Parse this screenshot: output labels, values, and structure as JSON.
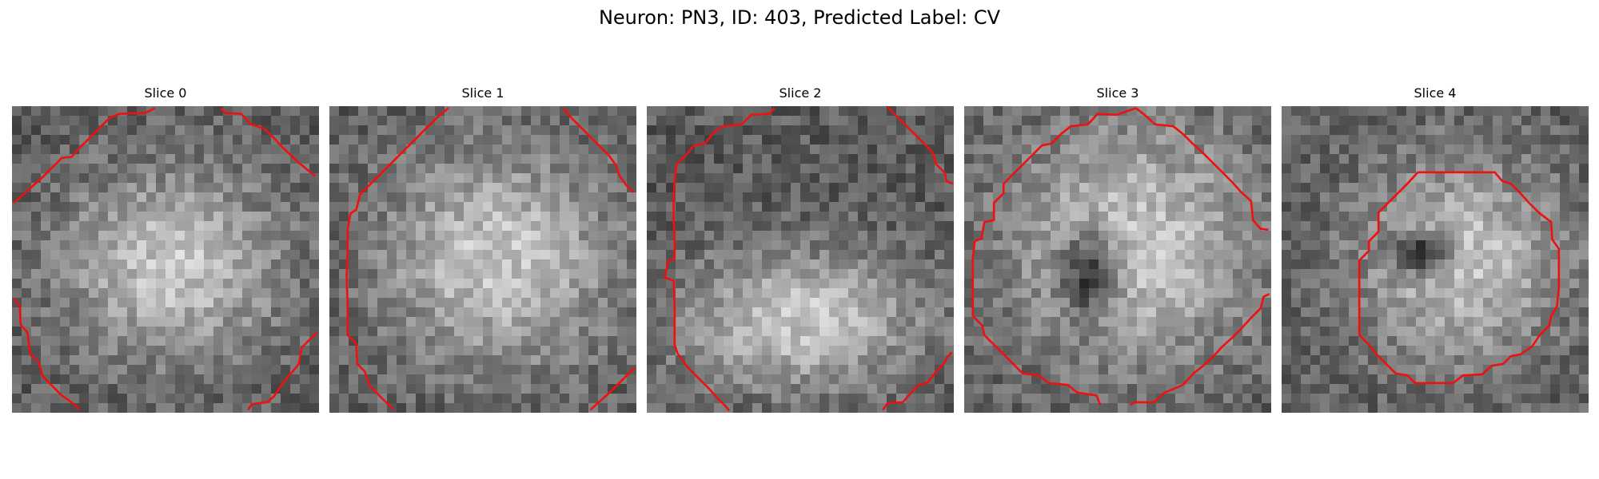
{
  "figure": {
    "title": "Neuron: PN3, ID: 403, Predicted Label: CV"
  },
  "image": {
    "grid": 32,
    "colormap": "gray",
    "contour_color": "#ee1111"
  },
  "panels": [
    {
      "title": "Slice 0",
      "bright_blob": [
        0.52,
        0.52,
        0.36,
        0.3
      ],
      "dark_core": null,
      "contours": [
        [
          [
            0.2,
            10.1
          ],
          [
            3.3,
            7.3
          ],
          [
            5.2,
            5.4
          ],
          [
            6.2,
            5.3
          ],
          [
            7.2,
            4.2
          ],
          [
            8.2,
            3.2
          ],
          [
            9.2,
            2.2
          ],
          [
            10.2,
            1.2
          ],
          [
            11.2,
            0.8
          ],
          [
            13.9,
            0.7
          ],
          [
            14.9,
            0.2
          ]
        ],
        [
          [
            21.8,
            0.2
          ],
          [
            22.2,
            0.7
          ],
          [
            23.9,
            0.8
          ],
          [
            24.9,
            1.9
          ],
          [
            26.2,
            2.3
          ],
          [
            27.2,
            3.2
          ],
          [
            28.2,
            4.3
          ],
          [
            29.9,
            5.9
          ],
          [
            31.6,
            7.3
          ]
        ],
        [
          [
            0.2,
            20.1
          ],
          [
            0.8,
            20.8
          ],
          [
            0.9,
            22.8
          ],
          [
            1.6,
            23.6
          ],
          [
            1.9,
            25.9
          ],
          [
            2.8,
            26.7
          ],
          [
            3.2,
            28.2
          ],
          [
            4.2,
            29.2
          ],
          [
            5.2,
            30.2
          ],
          [
            6.2,
            30.9
          ],
          [
            7.1,
            31.7
          ]
        ],
        [
          [
            24.6,
            31.7
          ],
          [
            25.0,
            31.1
          ],
          [
            26.6,
            30.9
          ],
          [
            27.3,
            30.3
          ],
          [
            28.1,
            29.1
          ],
          [
            29.0,
            28.0
          ],
          [
            29.9,
            26.9
          ],
          [
            30.2,
            25.2
          ],
          [
            31.2,
            24.2
          ],
          [
            31.8,
            23.6
          ]
        ]
      ]
    },
    {
      "title": "Slice 1",
      "bright_blob": [
        0.55,
        0.5,
        0.38,
        0.35
      ],
      "dark_core": null,
      "contours": [
        [
          [
            12.4,
            0.2
          ],
          [
            11.2,
            1.2
          ],
          [
            10.2,
            2.2
          ],
          [
            9.2,
            3.2
          ],
          [
            8.2,
            4.2
          ],
          [
            7.2,
            5.2
          ],
          [
            6.2,
            6.2
          ],
          [
            5.2,
            7.2
          ],
          [
            4.2,
            8.2
          ],
          [
            3.2,
            9.2
          ],
          [
            2.8,
            10.8
          ],
          [
            2.2,
            11.2
          ],
          [
            1.9,
            12.9
          ],
          [
            1.9,
            14.9
          ],
          [
            1.8,
            17.8
          ],
          [
            1.9,
            20.9
          ],
          [
            1.9,
            23.9
          ],
          [
            2.8,
            24.8
          ],
          [
            2.9,
            26.9
          ],
          [
            3.7,
            27.7
          ],
          [
            4.2,
            29.2
          ],
          [
            5.2,
            30.2
          ],
          [
            6.2,
            31.2
          ],
          [
            6.7,
            31.7
          ]
        ],
        [
          [
            24.4,
            0.2
          ],
          [
            25.2,
            1.2
          ],
          [
            26.2,
            2.2
          ],
          [
            27.2,
            3.2
          ],
          [
            28.2,
            4.2
          ],
          [
            29.1,
            5.1
          ],
          [
            29.9,
            6.2
          ],
          [
            30.2,
            7.2
          ],
          [
            30.9,
            8.2
          ],
          [
            31.7,
            9.0
          ]
        ],
        [
          [
            27.2,
            31.7
          ],
          [
            28.2,
            30.8
          ],
          [
            29.2,
            29.9
          ],
          [
            30.2,
            28.9
          ],
          [
            31.2,
            27.9
          ],
          [
            31.8,
            27.3
          ]
        ]
      ]
    },
    {
      "title": "Slice 2",
      "bright_blob": [
        0.5,
        0.7,
        0.4,
        0.22
      ],
      "dark_core": null,
      "contours": [
        [
          [
            13.3,
            0.2
          ],
          [
            12.8,
            0.8
          ],
          [
            10.9,
            0.9
          ],
          [
            9.9,
            1.9
          ],
          [
            7.9,
            2.1
          ],
          [
            6.9,
            2.8
          ],
          [
            6.1,
            3.9
          ],
          [
            4.9,
            4.1
          ],
          [
            4.1,
            5.1
          ],
          [
            3.1,
            6.1
          ],
          [
            2.9,
            7.9
          ],
          [
            2.8,
            9.8
          ],
          [
            2.8,
            11.8
          ],
          [
            2.9,
            13.9
          ],
          [
            2.9,
            15.9
          ],
          [
            2.2,
            16.2
          ],
          [
            1.9,
            17.9
          ],
          [
            2.8,
            18.2
          ],
          [
            2.9,
            20.9
          ],
          [
            2.9,
            22.9
          ],
          [
            2.9,
            24.9
          ],
          [
            3.2,
            25.8
          ],
          [
            4.3,
            27.3
          ],
          [
            5.3,
            28.3
          ],
          [
            6.4,
            29.4
          ],
          [
            7.3,
            30.4
          ],
          [
            8.2,
            31.3
          ],
          [
            8.6,
            31.8
          ]
        ],
        [
          [
            25.1,
            0.1
          ],
          [
            26.2,
            1.2
          ],
          [
            27.2,
            2.2
          ],
          [
            28.2,
            3.2
          ],
          [
            29.2,
            4.2
          ],
          [
            29.9,
            5.0
          ],
          [
            30.1,
            6.0
          ],
          [
            31.1,
            7.0
          ],
          [
            31.2,
            7.8
          ],
          [
            31.9,
            8.1
          ]
        ],
        [
          [
            24.6,
            31.7
          ],
          [
            25.1,
            31.0
          ],
          [
            26.7,
            30.9
          ],
          [
            27.3,
            30.2
          ],
          [
            28.2,
            29.2
          ],
          [
            29.3,
            28.8
          ],
          [
            30.1,
            27.8
          ],
          [
            31.0,
            26.8
          ],
          [
            31.3,
            26.2
          ],
          [
            31.8,
            25.7
          ]
        ]
      ]
    },
    {
      "title": "Slice 3",
      "bright_blob": [
        0.55,
        0.45,
        0.42,
        0.4
      ],
      "dark_core": [
        0.41,
        0.54,
        0.09,
        0.14
      ],
      "contours": [
        [
          [
            17.9,
            0.2
          ],
          [
            18.8,
            0.9
          ],
          [
            19.9,
            1.9
          ],
          [
            21.8,
            2.1
          ],
          [
            22.8,
            2.9
          ],
          [
            23.8,
            3.9
          ],
          [
            24.8,
            4.8
          ],
          [
            25.8,
            5.8
          ],
          [
            26.8,
            6.8
          ],
          [
            27.9,
            7.9
          ],
          [
            28.8,
            8.9
          ],
          [
            29.9,
            9.9
          ],
          [
            30.1,
            11.9
          ],
          [
            30.9,
            12.8
          ],
          [
            31.7,
            12.9
          ]
        ],
        [
          [
            17.9,
            0.2
          ],
          [
            15.9,
            0.9
          ],
          [
            13.9,
            0.8
          ],
          [
            12.9,
            1.9
          ],
          [
            11.1,
            2.1
          ],
          [
            10.1,
            2.9
          ],
          [
            9.1,
            3.9
          ],
          [
            8.1,
            4.1
          ],
          [
            7.1,
            5.1
          ],
          [
            6.1,
            6.1
          ],
          [
            5.1,
            7.1
          ],
          [
            4.1,
            8.1
          ],
          [
            4.1,
            9.1
          ],
          [
            3.1,
            10.1
          ],
          [
            3.1,
            11.9
          ],
          [
            2.1,
            12.1
          ],
          [
            1.8,
            13.8
          ],
          [
            1.1,
            14.1
          ],
          [
            0.9,
            15.9
          ],
          [
            0.9,
            17.9
          ],
          [
            0.9,
            19.9
          ],
          [
            0.9,
            21.9
          ],
          [
            1.9,
            22.9
          ],
          [
            2.1,
            23.9
          ],
          [
            3.1,
            24.9
          ],
          [
            4.1,
            25.9
          ],
          [
            5.1,
            26.9
          ],
          [
            6.1,
            27.9
          ],
          [
            7.8,
            28.1
          ],
          [
            8.8,
            28.9
          ],
          [
            10.8,
            29.1
          ],
          [
            11.8,
            29.9
          ],
          [
            13.8,
            30.2
          ],
          [
            14.2,
            31.2
          ]
        ],
        [
          [
            17.3,
            31.2
          ],
          [
            17.8,
            30.9
          ],
          [
            19.8,
            30.9
          ],
          [
            20.9,
            29.9
          ],
          [
            22.8,
            29.1
          ],
          [
            23.9,
            27.9
          ],
          [
            24.9,
            27.1
          ],
          [
            25.9,
            26.2
          ],
          [
            26.9,
            25.1
          ],
          [
            27.9,
            24.2
          ],
          [
            28.9,
            23.2
          ],
          [
            29.9,
            22.1
          ],
          [
            30.9,
            21.1
          ],
          [
            31.2,
            19.9
          ],
          [
            31.8,
            19.6
          ]
        ]
      ]
    },
    {
      "title": "Slice 4",
      "bright_blob": [
        0.58,
        0.5,
        0.34,
        0.33
      ],
      "dark_core": [
        0.45,
        0.48,
        0.1,
        0.07
      ],
      "contours": [
        [
          [
            14.2,
            6.9
          ],
          [
            15.2,
            6.9
          ],
          [
            17.2,
            6.9
          ],
          [
            19.2,
            6.9
          ],
          [
            21.2,
            6.9
          ],
          [
            22.2,
            6.9
          ],
          [
            23.0,
            7.8
          ],
          [
            23.9,
            8.1
          ],
          [
            24.9,
            9.1
          ],
          [
            25.8,
            10.1
          ],
          [
            26.8,
            11.1
          ],
          [
            28.1,
            12.1
          ],
          [
            28.2,
            13.9
          ],
          [
            28.9,
            14.9
          ],
          [
            28.9,
            16.9
          ],
          [
            28.9,
            18.9
          ],
          [
            28.7,
            20.9
          ],
          [
            28.1,
            21.9
          ],
          [
            27.9,
            22.9
          ],
          [
            26.9,
            23.9
          ],
          [
            26.1,
            25.1
          ],
          [
            24.9,
            25.9
          ],
          [
            23.9,
            26.1
          ],
          [
            23.1,
            26.9
          ],
          [
            21.9,
            27.1
          ],
          [
            20.9,
            28.0
          ],
          [
            18.9,
            28.1
          ],
          [
            17.9,
            28.9
          ],
          [
            15.9,
            28.9
          ],
          [
            13.9,
            28.9
          ],
          [
            13.1,
            28.1
          ],
          [
            11.9,
            27.9
          ],
          [
            10.9,
            26.9
          ],
          [
            9.9,
            25.9
          ],
          [
            9.1,
            24.9
          ],
          [
            8.1,
            23.9
          ],
          [
            8.1,
            21.9
          ],
          [
            8.1,
            19.9
          ],
          [
            8.1,
            17.9
          ],
          [
            8.1,
            16.1
          ],
          [
            9.1,
            15.1
          ],
          [
            9.1,
            14.1
          ],
          [
            10.1,
            13.1
          ],
          [
            10.1,
            11.1
          ],
          [
            11.1,
            10.1
          ],
          [
            12.1,
            9.1
          ],
          [
            13.1,
            8.1
          ],
          [
            14.2,
            6.9
          ]
        ]
      ]
    }
  ]
}
